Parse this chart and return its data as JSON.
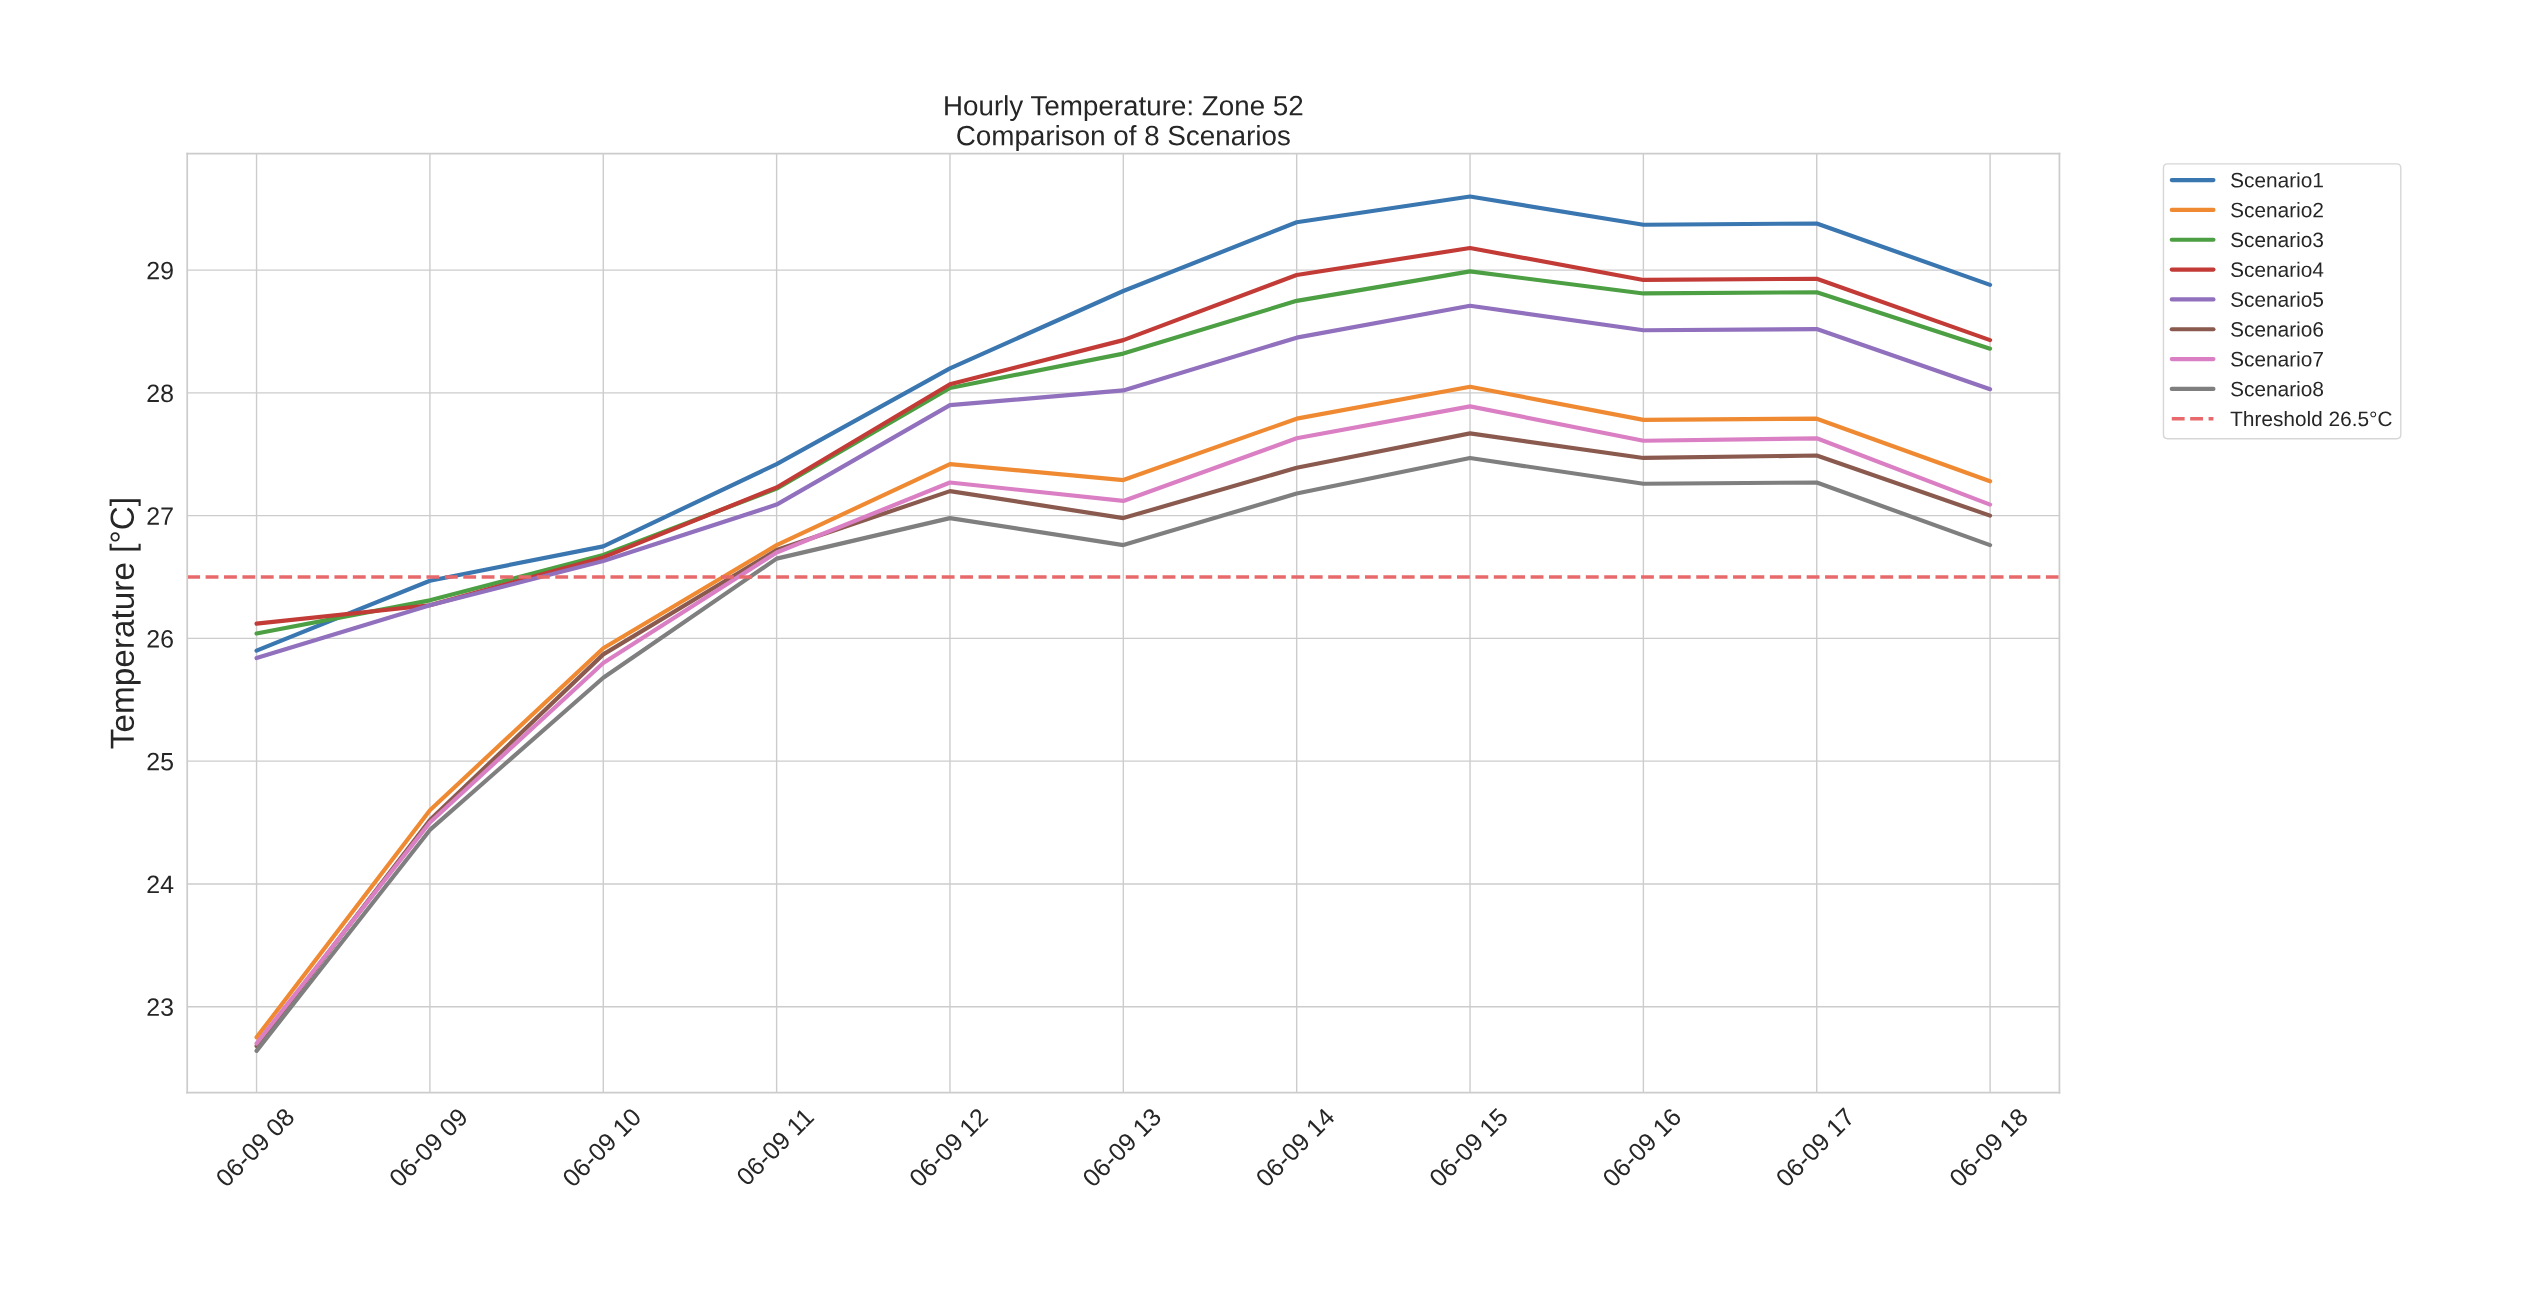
{
  "chart_data": {
    "type": "line",
    "title": "Hourly Temperature: Zone 52\nComparison of 8 Scenarios",
    "ylabel": "Temperature [°C]",
    "categories": [
      "06-09 08",
      "06-09 09",
      "06-09 10",
      "06-09 11",
      "06-09 12",
      "06-09 13",
      "06-09 14",
      "06-09 15",
      "06-09 16",
      "06-09 17",
      "06-09 18"
    ],
    "series": [
      {
        "name": "Scenario1",
        "color": "#3a76b0",
        "values": [
          25.9,
          26.47,
          26.75,
          27.42,
          28.2,
          28.83,
          29.39,
          29.6,
          29.37,
          29.38,
          28.88
        ]
      },
      {
        "name": "Scenario2",
        "color": "#ef8a32",
        "values": [
          22.75,
          24.6,
          25.92,
          26.76,
          27.42,
          27.29,
          27.79,
          28.05,
          27.78,
          27.79,
          27.28
        ]
      },
      {
        "name": "Scenario3",
        "color": "#4c9f42",
        "values": [
          26.04,
          26.31,
          26.68,
          27.22,
          28.04,
          28.32,
          28.75,
          28.99,
          28.81,
          28.82,
          28.36
        ]
      },
      {
        "name": "Scenario4",
        "color": "#c23b36",
        "values": [
          26.12,
          26.27,
          26.66,
          27.23,
          28.07,
          28.43,
          28.96,
          29.18,
          28.92,
          28.93,
          28.43
        ]
      },
      {
        "name": "Scenario5",
        "color": "#9170bd",
        "values": [
          25.84,
          26.27,
          26.63,
          27.09,
          27.9,
          28.02,
          28.45,
          28.71,
          28.51,
          28.52,
          28.03
        ]
      },
      {
        "name": "Scenario6",
        "color": "#8b5a4f",
        "values": [
          22.68,
          24.52,
          25.87,
          26.72,
          27.2,
          26.98,
          27.39,
          27.67,
          27.47,
          27.49,
          27.0
        ]
      },
      {
        "name": "Scenario7",
        "color": "#da7fc3",
        "values": [
          22.7,
          24.5,
          25.8,
          26.7,
          27.27,
          27.12,
          27.63,
          27.89,
          27.61,
          27.63,
          27.09
        ]
      },
      {
        "name": "Scenario8",
        "color": "#7f7f7f",
        "values": [
          22.64,
          24.44,
          25.68,
          26.65,
          26.98,
          26.76,
          27.18,
          27.47,
          27.26,
          27.27,
          26.76
        ]
      }
    ],
    "ref_lines": [
      {
        "axis": "y",
        "value": 26.5,
        "label": "Threshold 26.5°C",
        "color": "#e8696b",
        "line_style": "dashed"
      }
    ],
    "ylim": [
      22.3,
      29.95
    ],
    "yticks": [
      23,
      24,
      25,
      26,
      27,
      28,
      29
    ],
    "grid": true,
    "legend": "top right",
    "line_style": "solid",
    "marker": "none"
  }
}
